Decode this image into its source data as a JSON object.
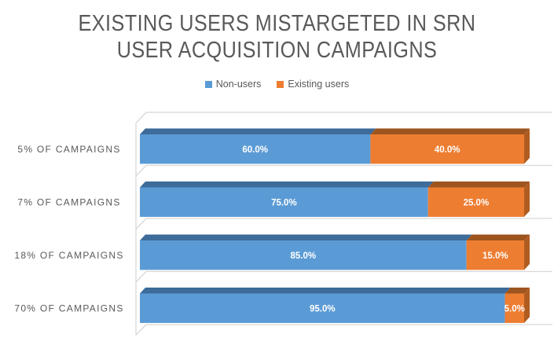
{
  "chart_data": {
    "type": "bar",
    "subtype": "horizontal-stacked-100pct-3d",
    "title": "EXISTING USERS MISTARGETED IN SRN USER ACQUISITION CAMPAIGNS",
    "title_lines": [
      "EXISTING USERS MISTARGETED IN SRN",
      "USER ACQUISITION CAMPAIGNS"
    ],
    "legend_position": "top",
    "grid": "category-frames",
    "xlim": [
      0,
      100
    ],
    "categories": [
      "5% OF CAMPAIGNS",
      "7% OF CAMPAIGNS",
      "18% OF CAMPAIGNS",
      "70% OF CAMPAIGNS"
    ],
    "series": [
      {
        "name": "Non-users",
        "color": "#5B9BD5",
        "top_color": "#3D6B9A",
        "side_color": "#3D6B9A",
        "values": [
          60,
          75,
          85,
          95
        ],
        "labels": [
          "60.0%",
          "75.0%",
          "85.0%",
          "95.0%"
        ]
      },
      {
        "name": "Existing users",
        "color": "#ED7D31",
        "top_color": "#9D541E",
        "side_color": "#B05C21",
        "values": [
          40,
          25,
          15,
          5
        ],
        "labels": [
          "40.0%",
          "25.0%",
          "15.0%",
          "5.0%"
        ]
      }
    ],
    "value_label_color": "#FFFFFF",
    "axis_label_color": "#595959",
    "title_color": "#595959",
    "frame_line_color": "#D8D8D8"
  }
}
